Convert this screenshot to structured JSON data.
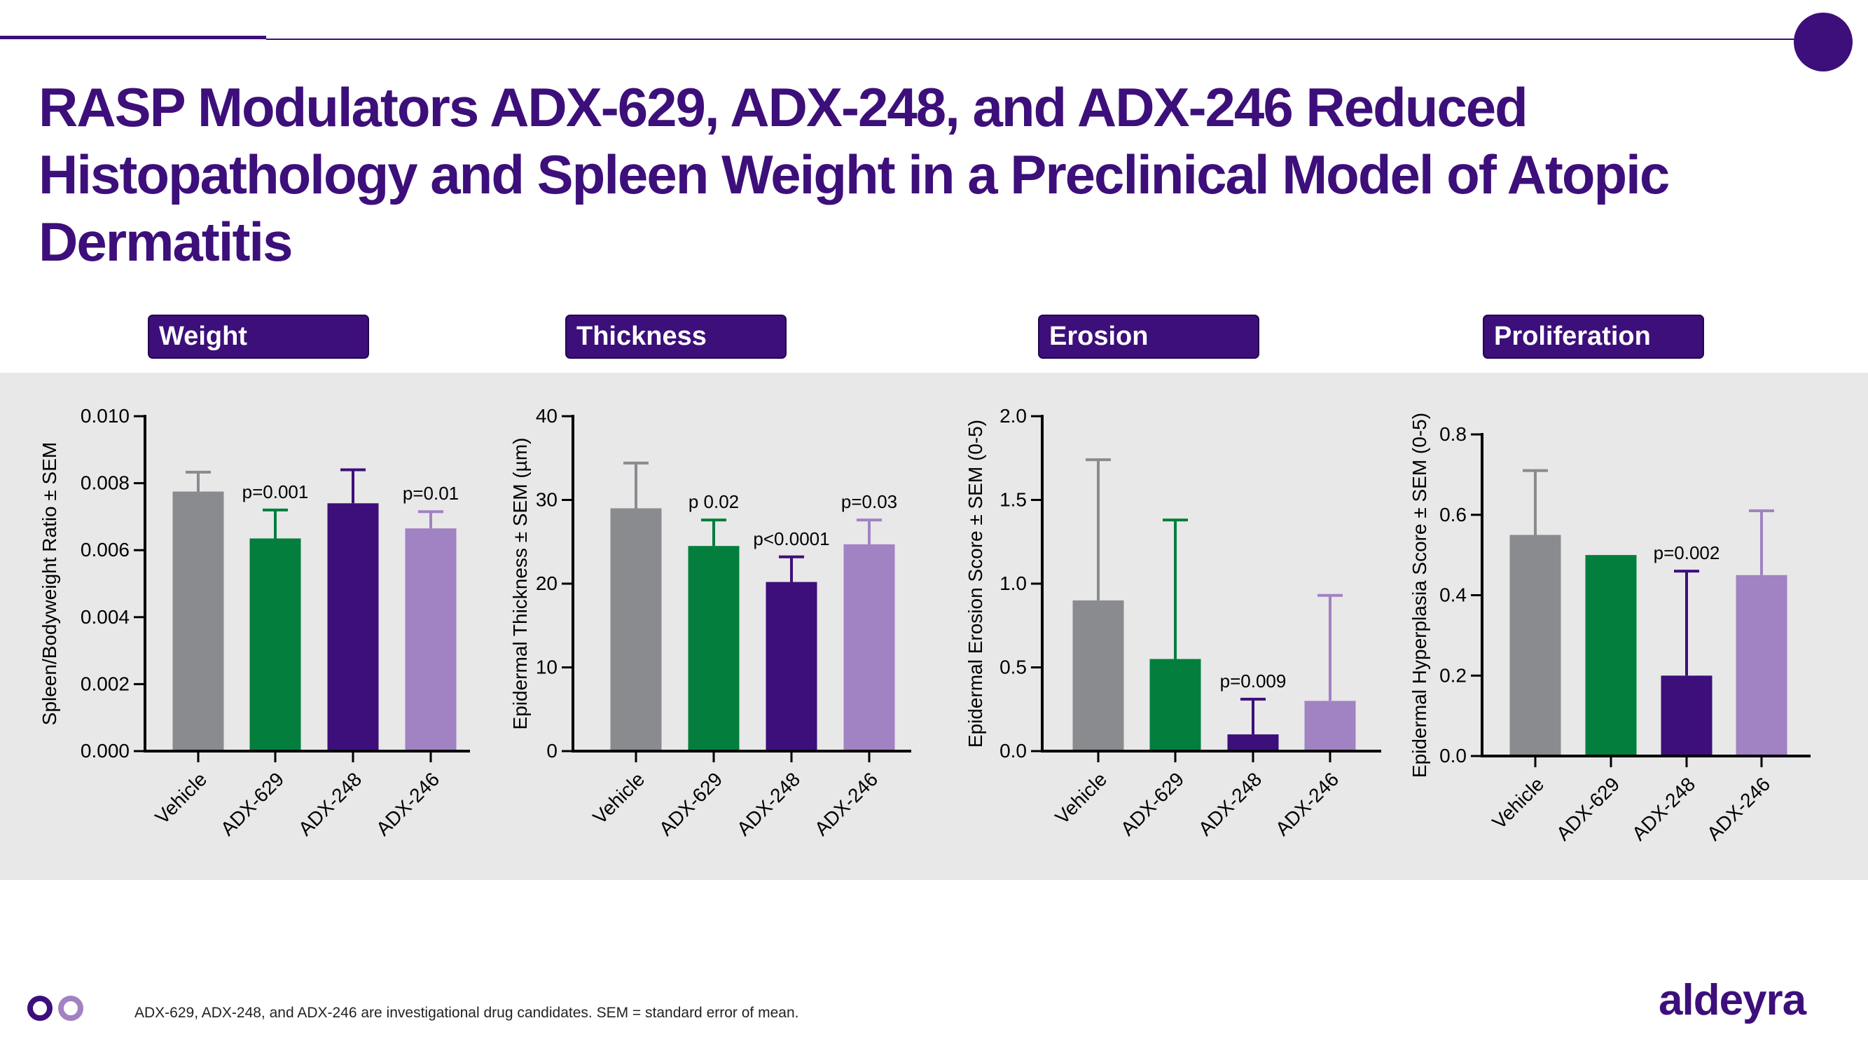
{
  "slide": {
    "title": "RASP Modulators ADX-629, ADX-248, and ADX-246 Reduced Histopathology and Spleen Weight in a Preclinical Model of Atopic Dermatitis",
    "footnote": "ADX-629, ADX-248, and ADX-246 are investigational drug candidates. SEM = standard error of mean.",
    "brand": "aldeyra",
    "colors": {
      "primary_purple": "#3d0f7a",
      "vehicle_gray": "#8a8b8f",
      "adx629_green": "#047e3c",
      "adx248_purple": "#3d0f7a",
      "adx246_lavender": "#a182c2",
      "band_gray": "#e8e8e8"
    }
  },
  "chart_data": [
    {
      "type": "bar",
      "panel_label": "Weight",
      "categories": [
        "Vehicle",
        "ADX-629",
        "ADX-248",
        "ADX-246"
      ],
      "values": [
        0.00775,
        0.00635,
        0.0074,
        0.00665
      ],
      "errors": [
        0.00058,
        0.00085,
        0.001,
        0.0005
      ],
      "annotations": [
        "",
        "p=0.001",
        "",
        "p=0.01"
      ],
      "ylabel": "Spleen/Bodyweight Ratio ± SEM",
      "ylim": [
        0,
        0.01
      ],
      "yticks": [
        "0.000",
        "0.002",
        "0.004",
        "0.006",
        "0.008",
        "0.010"
      ]
    },
    {
      "type": "bar",
      "panel_label": "Thickness",
      "categories": [
        "Vehicle",
        "ADX-629",
        "ADX-248",
        "ADX-246"
      ],
      "values": [
        29,
        24.5,
        20.2,
        24.7
      ],
      "errors": [
        5.4,
        3.1,
        3,
        2.9
      ],
      "annotations": [
        "",
        "p 0.02",
        "p<0.0001",
        "p=0.03"
      ],
      "ylabel": "Epidermal Thickness ± SEM (µm)",
      "ylim": [
        0,
        40
      ],
      "yticks": [
        "0",
        "10",
        "20",
        "30",
        "40"
      ]
    },
    {
      "type": "bar",
      "panel_label": "Erosion",
      "categories": [
        "Vehicle",
        "ADX-629",
        "ADX-248",
        "ADX-246"
      ],
      "values": [
        0.9,
        0.55,
        0.1,
        0.3
      ],
      "errors": [
        0.84,
        0.83,
        0.21,
        0.63
      ],
      "annotations": [
        "",
        "",
        "p=0.009",
        ""
      ],
      "ylabel": "Epidermal Erosion Score ± SEM (0-5)",
      "ylim": [
        0,
        2
      ],
      "yticks": [
        "0.0",
        "0.5",
        "1.0",
        "1.5",
        "2.0"
      ]
    },
    {
      "type": "bar",
      "panel_label": "Proliferation",
      "categories": [
        "Vehicle",
        "ADX-629",
        "ADX-248",
        "ADX-246"
      ],
      "values": [
        0.55,
        0.5,
        0.2,
        0.45
      ],
      "errors": [
        0.16,
        0,
        0.26,
        0.16
      ],
      "annotations": [
        "",
        "",
        "p=0.002",
        ""
      ],
      "ylabel": "Epidermal Hyperplasia Score ± SEM (0-5)",
      "ylim": [
        0,
        0.8
      ],
      "yticks": [
        "0.0",
        "0.2",
        "0.4",
        "0.6",
        "0.8"
      ]
    }
  ]
}
